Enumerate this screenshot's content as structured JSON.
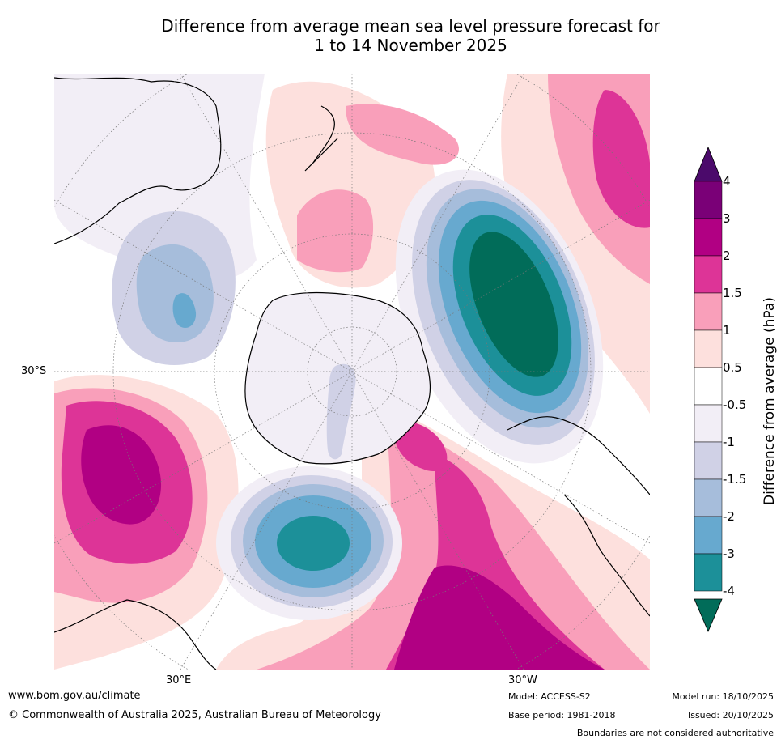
{
  "title": {
    "line1": "Difference from average mean sea level pressure forecast for",
    "line2": "1 to 14 November 2025"
  },
  "map": {
    "lat_label": "30°S",
    "lon_labels": {
      "east": "30°E",
      "west": "30°W"
    },
    "projection": "south-polar-stereographic"
  },
  "legend": {
    "axis_label": "Difference from average (hPa)",
    "ticks": [
      "4",
      "3",
      "2",
      "1.5",
      "1",
      "0.5",
      "-0.5",
      "-1",
      "-1.5",
      "-2",
      "-3",
      "-4"
    ],
    "colors": {
      "gt4": "#4b0a6b",
      "3_4": "#7a0077",
      "2_3": "#b10083",
      "1.5_2": "#dd3497",
      "1_1.5": "#f99fba",
      "0.5_1": "#fde0dd",
      "-0.5_0.5": "#ffffff",
      "-1_-0.5": "#f2eef6",
      "-1.5_-1": "#d0d1e6",
      "-2_-1.5": "#a6bddb",
      "-3_-2": "#67a9cf",
      "-4_-3": "#1c9099",
      "lt-4": "#016c59"
    }
  },
  "footer": {
    "url": "www.bom.gov.au/climate",
    "copyright": "© Commonwealth of Australia 2025, Australian Bureau of Meteorology",
    "model": "Model: ACCESS-S2",
    "base_period": "Base period: 1981-2018",
    "model_run": "Model run: 18/10/2025",
    "issued": "Issued: 20/10/2025",
    "disclaimer": "Boundaries are not considered authoritative"
  }
}
